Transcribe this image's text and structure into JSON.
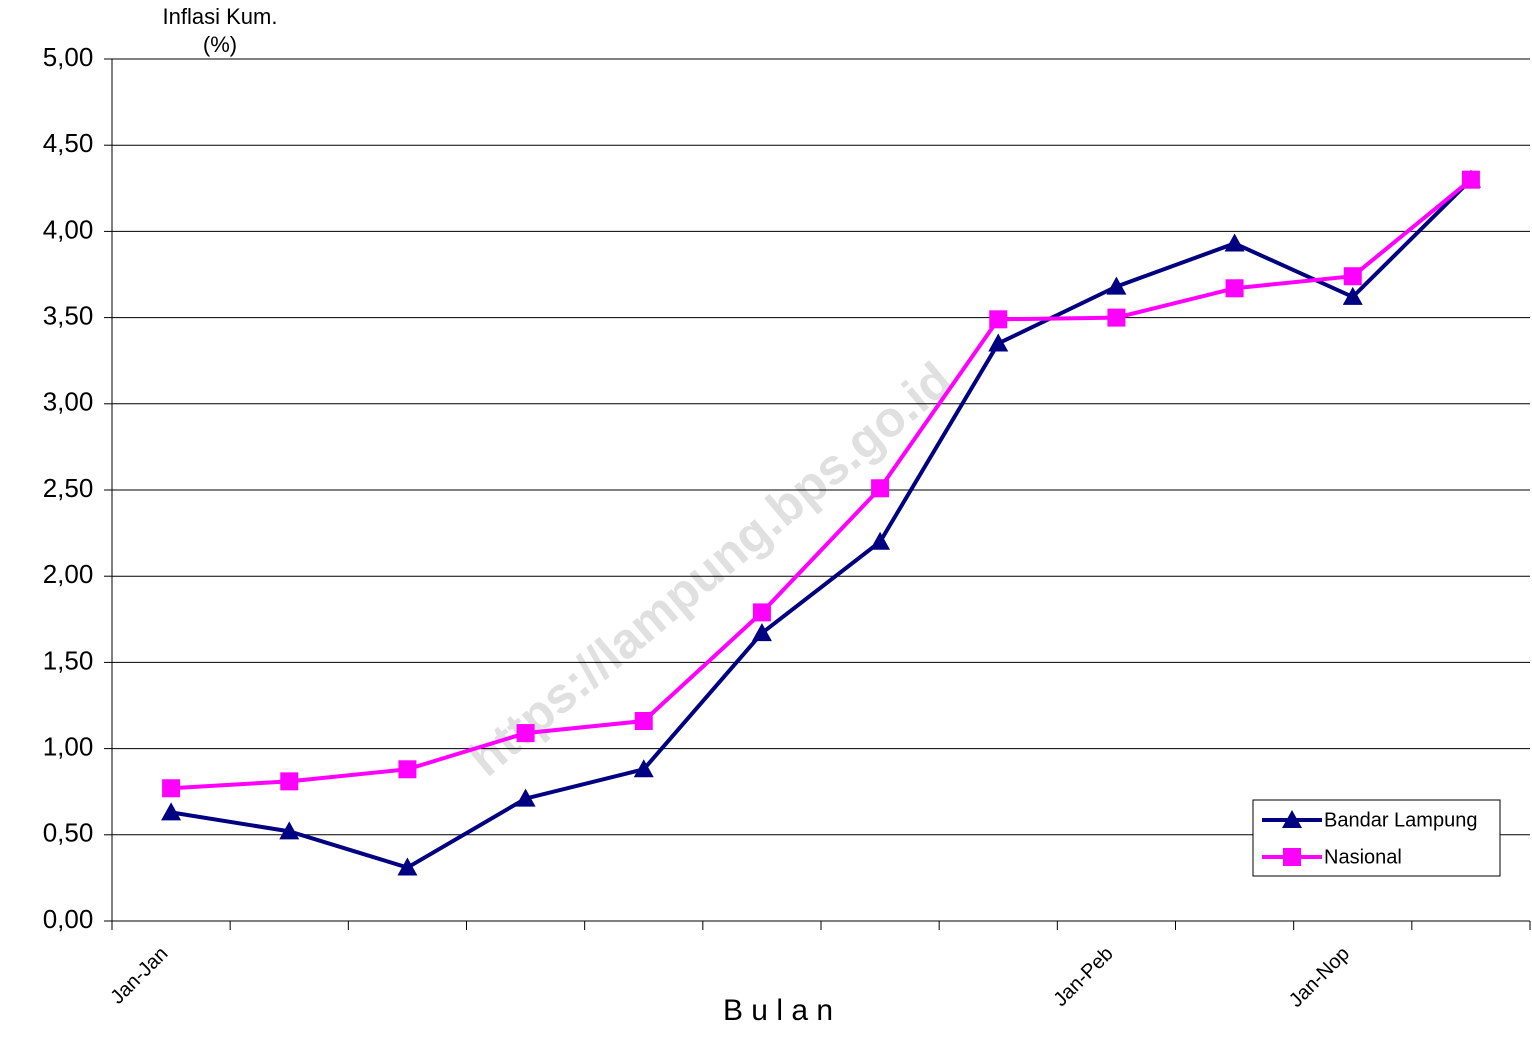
{
  "chart_data": {
    "type": "line",
    "ylabel": [
      "Inflasi Kum.",
      "(%)"
    ],
    "xlabel": "B u l a n",
    "watermark": "https://lampung.bps.go.id",
    "categories": [
      "Jan-Jan",
      null,
      null,
      null,
      null,
      null,
      null,
      null,
      "Jan-Peb",
      null,
      "Jan-Nop",
      null
    ],
    "series": [
      {
        "name": "Bandar Lampung",
        "color": "#000080",
        "marker": "triangle",
        "values": [
          0.63,
          0.52,
          0.31,
          0.71,
          0.88,
          1.67,
          2.2,
          3.35,
          3.68,
          3.93,
          3.62,
          4.3
        ]
      },
      {
        "name": "Nasional",
        "color": "#ff00ff",
        "marker": "square",
        "values": [
          0.77,
          0.81,
          0.88,
          1.09,
          1.16,
          1.79,
          2.51,
          3.49,
          3.5,
          3.67,
          3.74,
          4.3
        ]
      }
    ],
    "ylim": [
      0,
      5
    ],
    "yticks": [
      {
        "value": 0,
        "label": "0,00"
      },
      {
        "value": 0.5,
        "label": "0,50"
      },
      {
        "value": 1,
        "label": "1,00"
      },
      {
        "value": 1.5,
        "label": "1,50"
      },
      {
        "value": 2,
        "label": "2,00"
      },
      {
        "value": 2.5,
        "label": "2,50"
      },
      {
        "value": 3,
        "label": "3,00"
      },
      {
        "value": 3.5,
        "label": "3,50"
      },
      {
        "value": 4,
        "label": "4,00"
      },
      {
        "value": 4.5,
        "label": "4,50"
      },
      {
        "value": 5,
        "label": "5,00"
      }
    ],
    "grid": true,
    "legend": "lower right"
  }
}
